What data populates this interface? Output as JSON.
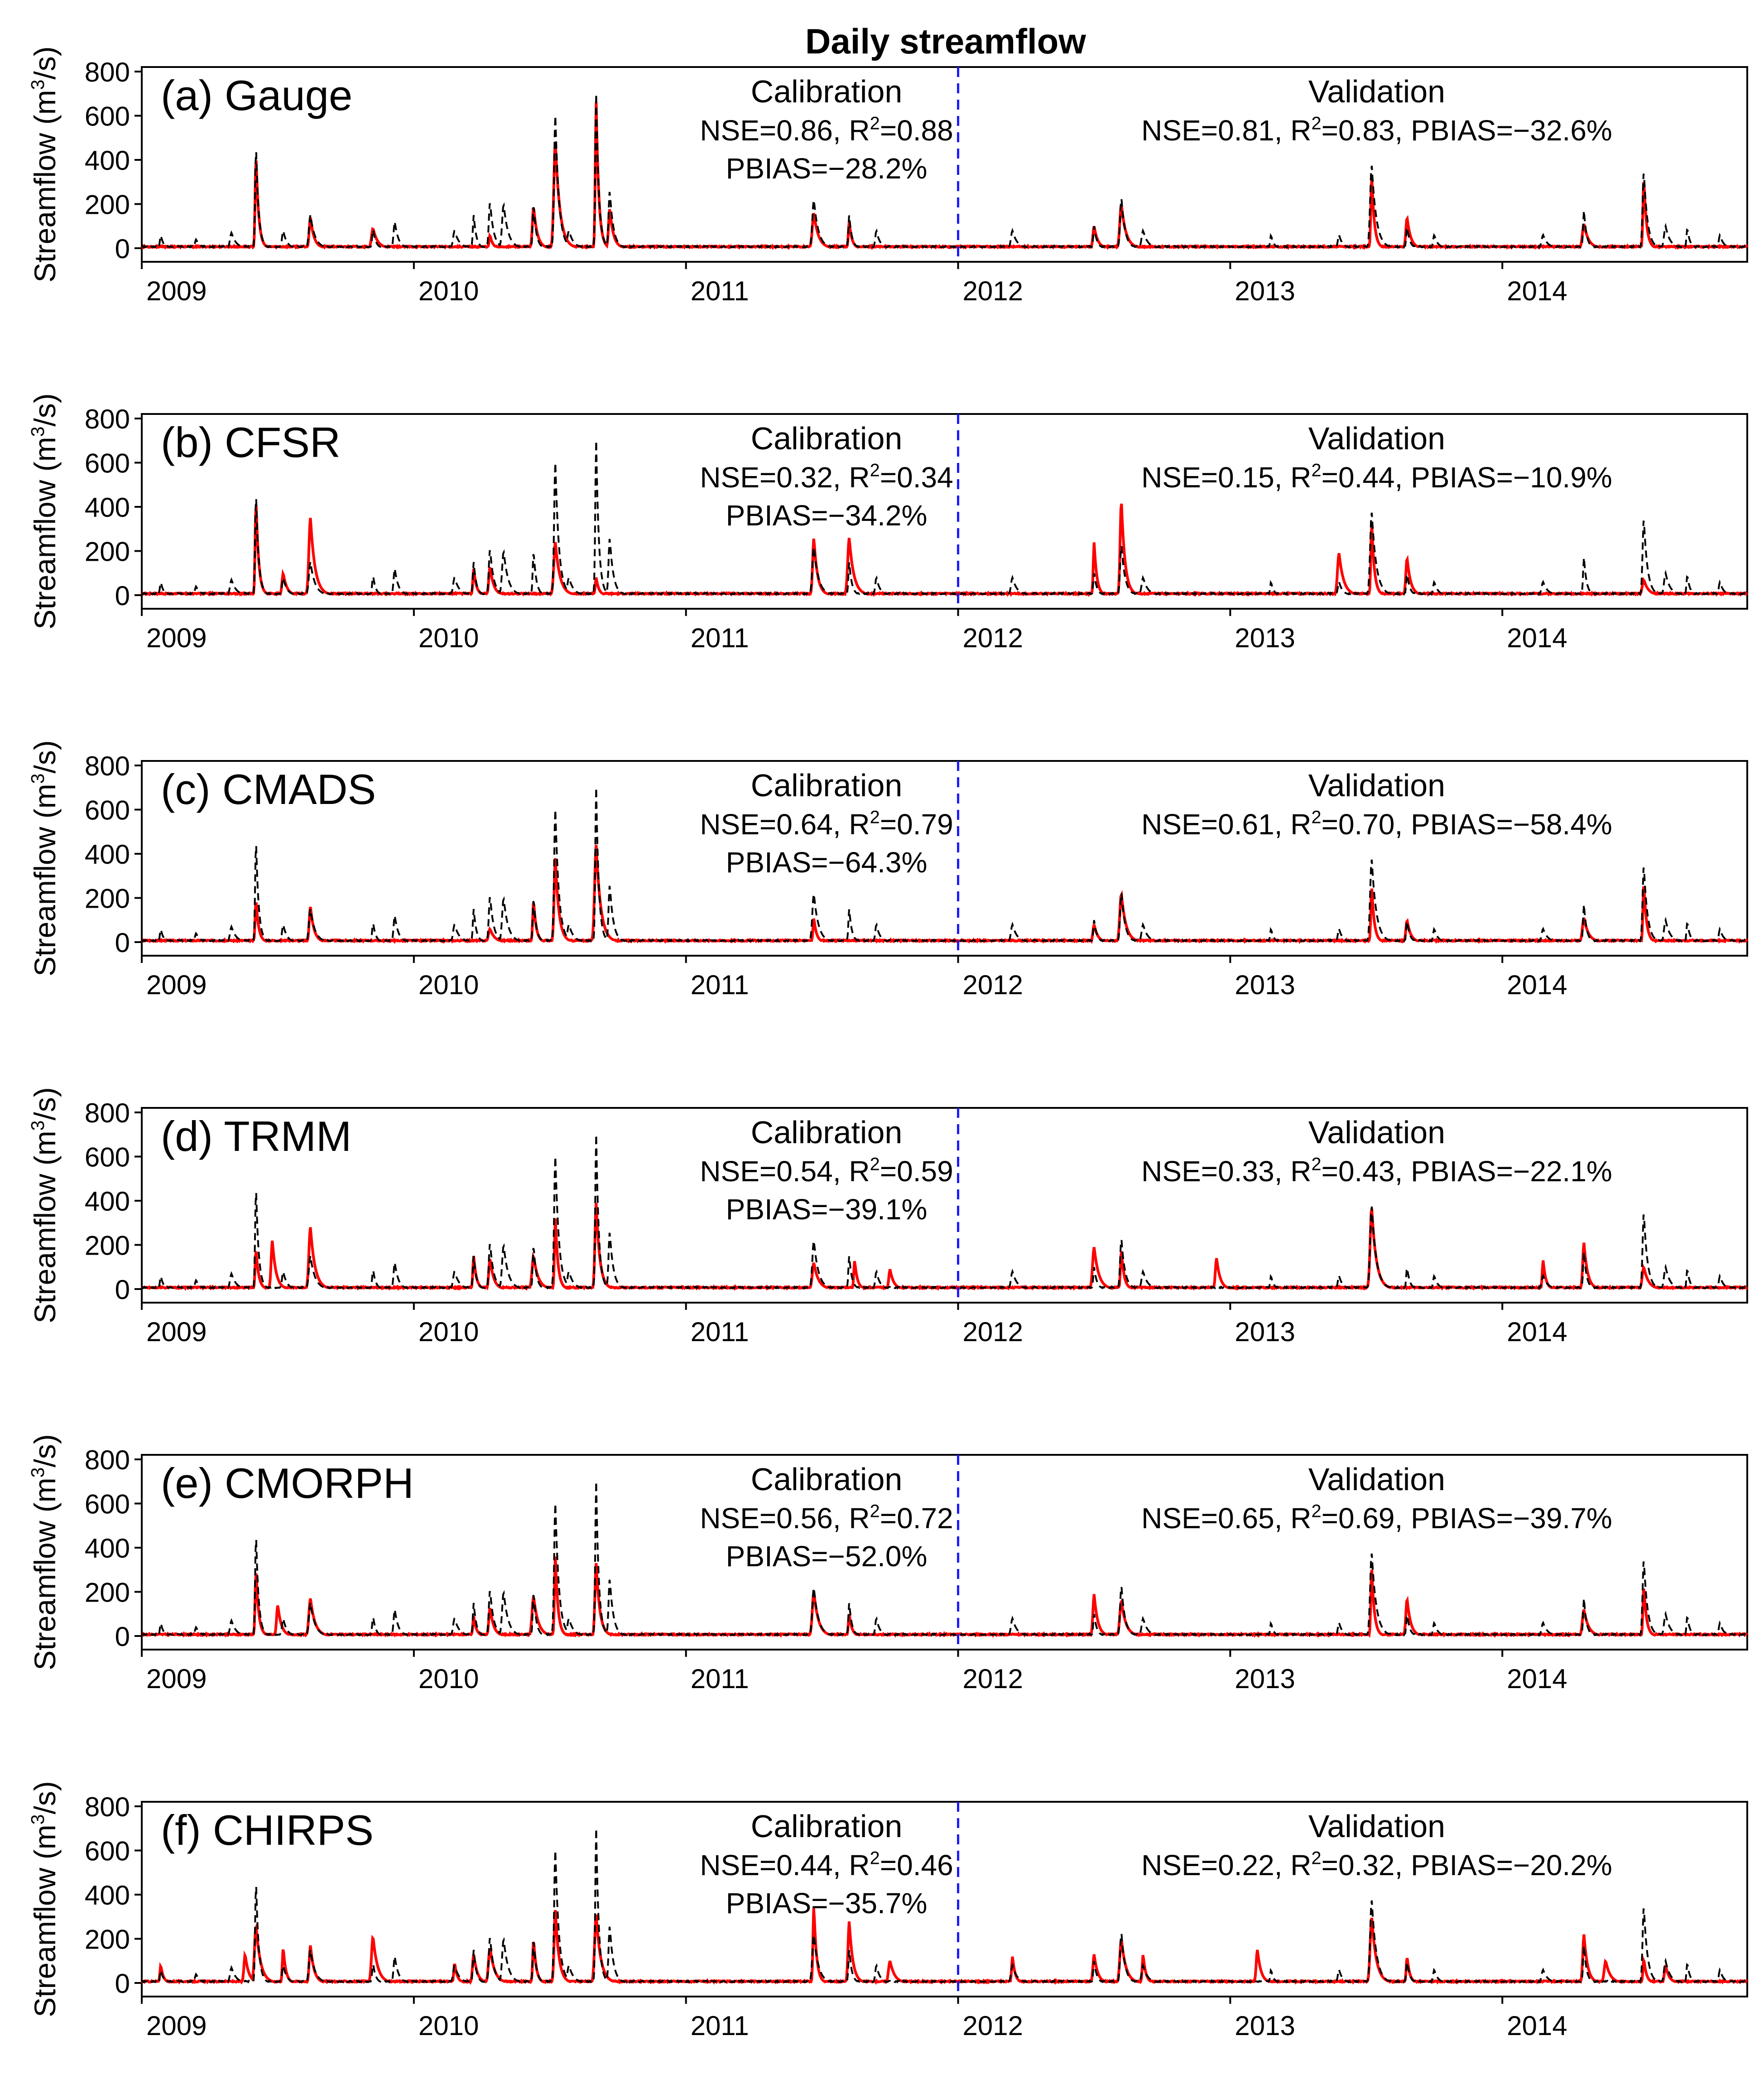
{
  "chart_data": {
    "title": "Daily streamflow",
    "ylabel": "Streamflow (m3/s)",
    "ylabel_parts": {
      "before": "Streamflow (m",
      "sup": "3",
      "after": "/s)"
    },
    "ylim": [
      0,
      800
    ],
    "y_ticks": [
      0,
      200,
      400,
      600,
      800
    ],
    "xlim": [
      2009.0,
      2014.9
    ],
    "x_ticks": [
      "2009",
      "2010",
      "2011",
      "2012",
      "2013",
      "2014"
    ],
    "x_tick_positions": [
      2009.0,
      2010.0,
      2011.0,
      2012.0,
      2013.0,
      2014.0
    ],
    "split_x": 2012.0,
    "split_line_color": "#1a1aff",
    "series_colors": {
      "observed": "#000000",
      "simulated": "#ff0000"
    },
    "calibration_heading": "Calibration",
    "validation_heading": "Validation",
    "peaks_observed": [
      [
        2009.07,
        60
      ],
      [
        2009.2,
        40
      ],
      [
        2009.33,
        70
      ],
      [
        2009.42,
        460
      ],
      [
        2009.52,
        80
      ],
      [
        2009.62,
        150
      ],
      [
        2009.85,
        90
      ],
      [
        2009.93,
        120
      ],
      [
        2010.15,
        80
      ],
      [
        2010.22,
        150
      ],
      [
        2010.28,
        210
      ],
      [
        2010.33,
        200
      ],
      [
        2010.44,
        200
      ],
      [
        2010.52,
        600
      ],
      [
        2010.57,
        80
      ],
      [
        2010.67,
        700
      ],
      [
        2010.72,
        260
      ],
      [
        2011.47,
        220
      ],
      [
        2011.6,
        150
      ],
      [
        2011.7,
        80
      ],
      [
        2012.2,
        80
      ],
      [
        2012.5,
        100
      ],
      [
        2012.6,
        230
      ],
      [
        2012.68,
        80
      ],
      [
        2013.15,
        60
      ],
      [
        2013.4,
        60
      ],
      [
        2013.52,
        380
      ],
      [
        2013.65,
        100
      ],
      [
        2013.75,
        60
      ],
      [
        2014.15,
        60
      ],
      [
        2014.3,
        170
      ],
      [
        2014.52,
        350
      ],
      [
        2014.6,
        100
      ],
      [
        2014.68,
        90
      ],
      [
        2014.8,
        60
      ]
    ],
    "panels": [
      {
        "type": "line",
        "label": "(a) Gauge",
        "calibration": {
          "metrics": "NSE=0.86, R",
          "r2": "=0.88",
          "pbias": "PBIAS=−28.2%"
        },
        "validation": {
          "metrics": "NSE=0.81, R",
          "r2": "=0.83, PBIAS=−32.6%"
        },
        "peaks_simulated": [
          [
            2009.42,
            420
          ],
          [
            2009.62,
            140
          ],
          [
            2009.85,
            90
          ],
          [
            2010.28,
            60
          ],
          [
            2010.44,
            190
          ],
          [
            2010.52,
            480
          ],
          [
            2010.67,
            660
          ],
          [
            2010.72,
            180
          ],
          [
            2011.47,
            160
          ],
          [
            2011.6,
            120
          ],
          [
            2012.5,
            100
          ],
          [
            2012.6,
            200
          ],
          [
            2013.52,
            330
          ],
          [
            2013.65,
            140
          ],
          [
            2014.3,
            110
          ],
          [
            2014.52,
            320
          ]
        ]
      },
      {
        "type": "line",
        "label": "(b) CFSR",
        "calibration": {
          "metrics": "NSE=0.32, R",
          "r2": "=0.34",
          "pbias": "PBIAS=−34.2%"
        },
        "validation": {
          "metrics": "NSE=0.15, R",
          "r2": "=0.44, PBIAS=−10.9%"
        },
        "peaks_simulated": [
          [
            2009.42,
            430
          ],
          [
            2009.52,
            100
          ],
          [
            2009.62,
            350
          ],
          [
            2010.22,
            120
          ],
          [
            2010.28,
            130
          ],
          [
            2010.52,
            240
          ],
          [
            2010.67,
            80
          ],
          [
            2011.47,
            260
          ],
          [
            2011.6,
            260
          ],
          [
            2012.5,
            240
          ],
          [
            2012.6,
            430
          ],
          [
            2013.4,
            190
          ],
          [
            2013.52,
            330
          ],
          [
            2013.65,
            170
          ],
          [
            2014.52,
            70
          ]
        ]
      },
      {
        "type": "line",
        "label": "(c) CMADS",
        "calibration": {
          "metrics": "NSE=0.64, R",
          "r2": "=0.79",
          "pbias": "PBIAS=−64.3%"
        },
        "validation": {
          "metrics": "NSE=0.61, R",
          "r2": "=0.70, PBIAS=−58.4%"
        },
        "peaks_simulated": [
          [
            2009.42,
            190
          ],
          [
            2009.62,
            160
          ],
          [
            2010.28,
            60
          ],
          [
            2010.44,
            190
          ],
          [
            2010.52,
            380
          ],
          [
            2010.67,
            440
          ],
          [
            2011.47,
            110
          ],
          [
            2012.5,
            80
          ],
          [
            2012.6,
            220
          ],
          [
            2013.52,
            250
          ],
          [
            2013.65,
            100
          ],
          [
            2014.3,
            110
          ],
          [
            2014.52,
            270
          ]
        ]
      },
      {
        "type": "line",
        "label": "(d) TRMM",
        "calibration": {
          "metrics": "NSE=0.54, R",
          "r2": "=0.59",
          "pbias": "PBIAS=−39.1%"
        },
        "validation": {
          "metrics": "NSE=0.33, R",
          "r2": "=0.43, PBIAS=−22.1%"
        },
        "peaks_simulated": [
          [
            2009.42,
            180
          ],
          [
            2009.48,
            220
          ],
          [
            2009.62,
            280
          ],
          [
            2010.22,
            150
          ],
          [
            2010.28,
            140
          ],
          [
            2010.44,
            150
          ],
          [
            2010.52,
            320
          ],
          [
            2010.67,
            390
          ],
          [
            2011.47,
            120
          ],
          [
            2011.62,
            130
          ],
          [
            2011.75,
            90
          ],
          [
            2012.5,
            190
          ],
          [
            2012.6,
            180
          ],
          [
            2012.95,
            140
          ],
          [
            2013.52,
            370
          ],
          [
            2014.15,
            130
          ],
          [
            2014.3,
            210
          ],
          [
            2014.52,
            100
          ]
        ]
      },
      {
        "type": "line",
        "label": "(e) CMORPH",
        "calibration": {
          "metrics": "NSE=0.56, R",
          "r2": "=0.72",
          "pbias": "PBIAS=−52.0%"
        },
        "validation": {
          "metrics": "NSE=0.65, R",
          "r2": "=0.69, PBIAS=−39.7%"
        },
        "peaks_simulated": [
          [
            2009.42,
            300
          ],
          [
            2009.5,
            140
          ],
          [
            2009.62,
            170
          ],
          [
            2010.22,
            90
          ],
          [
            2010.28,
            130
          ],
          [
            2010.44,
            180
          ],
          [
            2010.52,
            360
          ],
          [
            2010.67,
            330
          ],
          [
            2011.47,
            200
          ],
          [
            2011.6,
            100
          ],
          [
            2012.5,
            190
          ],
          [
            2012.6,
            160
          ],
          [
            2013.52,
            310
          ],
          [
            2013.65,
            170
          ],
          [
            2014.3,
            120
          ],
          [
            2014.52,
            230
          ]
        ]
      },
      {
        "type": "line",
        "label": "(f) CHIRPS",
        "calibration": {
          "metrics": "NSE=0.44, R",
          "r2": "=0.46",
          "pbias": "PBIAS=−35.7%"
        },
        "validation": {
          "metrics": "NSE=0.22, R",
          "r2": "=0.32, PBIAS=−20.2%"
        },
        "peaks_simulated": [
          [
            2009.07,
            80
          ],
          [
            2009.38,
            130
          ],
          [
            2009.42,
            260
          ],
          [
            2009.52,
            160
          ],
          [
            2009.62,
            170
          ],
          [
            2009.85,
            210
          ],
          [
            2010.15,
            90
          ],
          [
            2010.22,
            130
          ],
          [
            2010.28,
            160
          ],
          [
            2010.44,
            200
          ],
          [
            2010.52,
            330
          ],
          [
            2010.67,
            310
          ],
          [
            2011.47,
            350
          ],
          [
            2011.6,
            280
          ],
          [
            2011.75,
            100
          ],
          [
            2012.2,
            120
          ],
          [
            2012.5,
            130
          ],
          [
            2012.6,
            200
          ],
          [
            2012.68,
            130
          ],
          [
            2013.1,
            150
          ],
          [
            2013.52,
            300
          ],
          [
            2013.65,
            120
          ],
          [
            2014.3,
            220
          ],
          [
            2014.38,
            100
          ],
          [
            2014.52,
            110
          ],
          [
            2014.6,
            80
          ]
        ]
      }
    ]
  }
}
